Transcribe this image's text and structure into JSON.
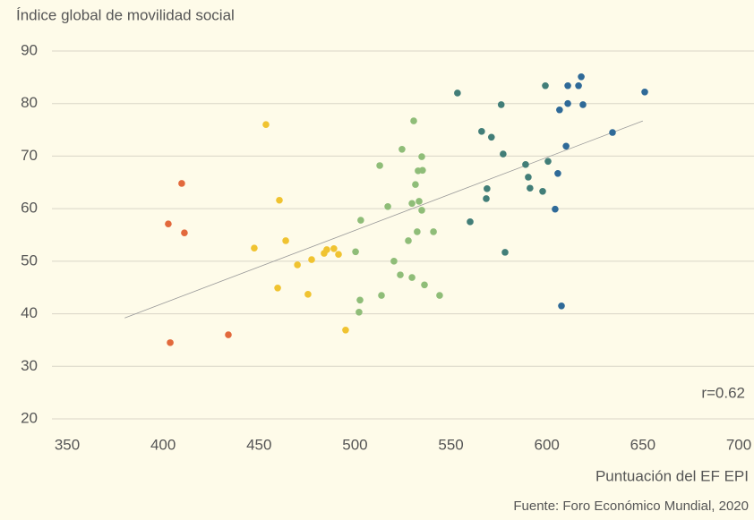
{
  "chart_data": {
    "type": "scatter",
    "y_label": "Índice global de movilidad social",
    "x_label": "Puntuación del EF EPI",
    "source": "Fuente: Foro Económico Mundial, 2020",
    "annotation": "r=0.62",
    "xlim": [
      350,
      700
    ],
    "xticks": [
      350,
      400,
      450,
      500,
      550,
      600,
      650,
      700
    ],
    "ylim": [
      20,
      90
    ],
    "yticks": [
      20,
      30,
      40,
      50,
      60,
      70,
      80,
      90
    ],
    "grid": true,
    "series": [
      {
        "color": "#e2693c",
        "x": [
          402.7,
          409.7,
          411.1,
          403.7,
          434
        ],
        "values": [
          57.1,
          64.8,
          55.4,
          34.5,
          36.0
        ]
      },
      {
        "color": "#f0c330",
        "x": [
          453.6,
          460.6,
          447.5,
          463.9,
          459.7,
          470,
          475.5,
          477.4,
          483.9,
          485.3,
          489,
          491.4,
          495.1
        ],
        "values": [
          76.0,
          61.6,
          52.5,
          53.9,
          44.9,
          49.3,
          43.7,
          50.3,
          51.5,
          52.2,
          52.4,
          51.3,
          36.9
        ]
      },
      {
        "color": "#8fbd78",
        "x": [
          530.6,
          524.5,
          534.8,
          512.9,
          532.9,
          535.2,
          531.5,
          517.1,
          529.7,
          533.4,
          534.8,
          503,
          532.4,
          540.9,
          527.8,
          500.3,
          520.3,
          523.6,
          529.7,
          536.2,
          544.1,
          513.8,
          502.6,
          502.1
        ],
        "values": [
          76.7,
          71.3,
          69.9,
          68.2,
          67.2,
          67.3,
          64.6,
          60.4,
          61.0,
          61.4,
          59.7,
          57.8,
          55.6,
          55.6,
          53.9,
          51.8,
          50.0,
          47.4,
          46.9,
          45.5,
          43.5,
          43.5,
          42.6,
          40.3
        ]
      },
      {
        "color": "#427e78",
        "x": [
          553.4,
          576.2,
          566,
          571.1,
          577.2,
          588.9,
          600.6,
          590.3,
          568.8,
          591.2,
          597.8,
          568.4,
          560,
          578.2,
          599.2
        ],
        "values": [
          82.0,
          79.8,
          74.7,
          73.6,
          70.4,
          68.4,
          69.0,
          66.0,
          63.8,
          63.9,
          63.3,
          61.9,
          57.5,
          51.7,
          83.4
        ]
      },
      {
        "color": "#2f6a98",
        "x": [
          617.9,
          610.9,
          616.5,
          651,
          610.9,
          618.8,
          606.6,
          634.2,
          610,
          605.7,
          604.3,
          607.6
        ],
        "values": [
          85.1,
          83.4,
          83.4,
          82.2,
          80.0,
          79.8,
          78.8,
          74.5,
          71.9,
          66.7,
          59.9,
          41.5
        ]
      }
    ],
    "trendline": {
      "color": "#999999",
      "x": [
        380,
        650
      ],
      "values": [
        39.2,
        76.7
      ]
    }
  }
}
